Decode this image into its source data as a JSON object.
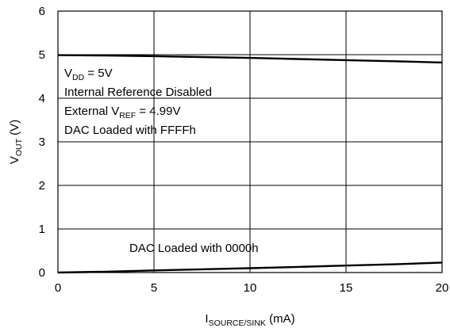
{
  "chart_data": {
    "type": "line",
    "xlabel": {
      "main": "I",
      "sub": "SOURCE/SINK",
      "unit": " (mA)"
    },
    "ylabel": {
      "main": "V",
      "sub": "OUT",
      "unit": " (V)"
    },
    "xlim": [
      0,
      20
    ],
    "ylim": [
      0,
      6
    ],
    "x_ticks": [
      "0",
      "5",
      "10",
      "15",
      "20"
    ],
    "y_ticks": [
      "0",
      "1",
      "2",
      "3",
      "4",
      "5",
      "6"
    ],
    "grid": true,
    "series": [
      {
        "x": [
          0,
          2.5,
          5,
          7.5,
          10,
          12.5,
          15,
          17.5,
          20
        ],
        "y": [
          4.99,
          4.98,
          4.965,
          4.945,
          4.925,
          4.9,
          4.875,
          4.85,
          4.82
        ]
      },
      {
        "x": [
          0,
          2.5,
          5,
          7.5,
          10,
          12.5,
          15,
          17.5,
          20
        ],
        "y": [
          0.0,
          0.02,
          0.05,
          0.075,
          0.1,
          0.13,
          0.16,
          0.19,
          0.23
        ]
      }
    ],
    "annotations": {
      "upper": [
        {
          "main": "V",
          "sub": "DD",
          "rest": " = 5V"
        },
        {
          "main": "Internal Reference Disabled",
          "sub": "",
          "rest": ""
        },
        {
          "main": "External V",
          "sub": "REF",
          "rest": " = 4.99V"
        },
        {
          "main": "DAC Loaded with FFFFh",
          "sub": "",
          "rest": ""
        }
      ],
      "lower": "DAC Loaded with 0000h"
    }
  }
}
